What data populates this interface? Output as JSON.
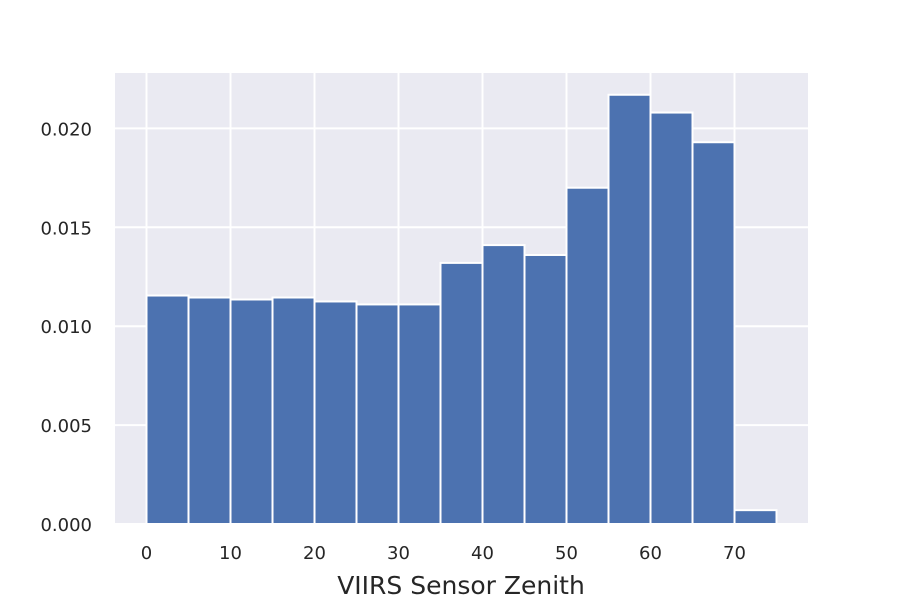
{
  "chart_data": {
    "type": "bar",
    "title": "",
    "xlabel": "VIIRS Sensor Zenith",
    "ylabel": "",
    "bin_edges": [
      0,
      5,
      10,
      15,
      20,
      25,
      30,
      35,
      40,
      45,
      50,
      55,
      60,
      65,
      70,
      75
    ],
    "values": [
      0.01155,
      0.01145,
      0.01135,
      0.01145,
      0.01125,
      0.0111,
      0.0111,
      0.0132,
      0.0141,
      0.0136,
      0.017,
      0.0217,
      0.0208,
      0.0193,
      0.0007
    ],
    "xlim": [
      -3.75,
      78.75
    ],
    "ylim": [
      0,
      0.0228
    ],
    "x_ticks": [
      0,
      10,
      20,
      30,
      40,
      50,
      60,
      70
    ],
    "x_tick_labels": [
      "0",
      "10",
      "20",
      "30",
      "40",
      "50",
      "60",
      "70"
    ],
    "y_ticks": [
      0,
      0.005,
      0.01,
      0.015,
      0.02
    ],
    "y_tick_labels": [
      "0.000",
      "0.005",
      "0.010",
      "0.015",
      "0.020"
    ],
    "grid": true,
    "legend": "none",
    "colors": {
      "bar": "#4c72b0",
      "plot_background": "#eaeaf2",
      "grid": "#ffffff",
      "text": "#262626"
    }
  }
}
